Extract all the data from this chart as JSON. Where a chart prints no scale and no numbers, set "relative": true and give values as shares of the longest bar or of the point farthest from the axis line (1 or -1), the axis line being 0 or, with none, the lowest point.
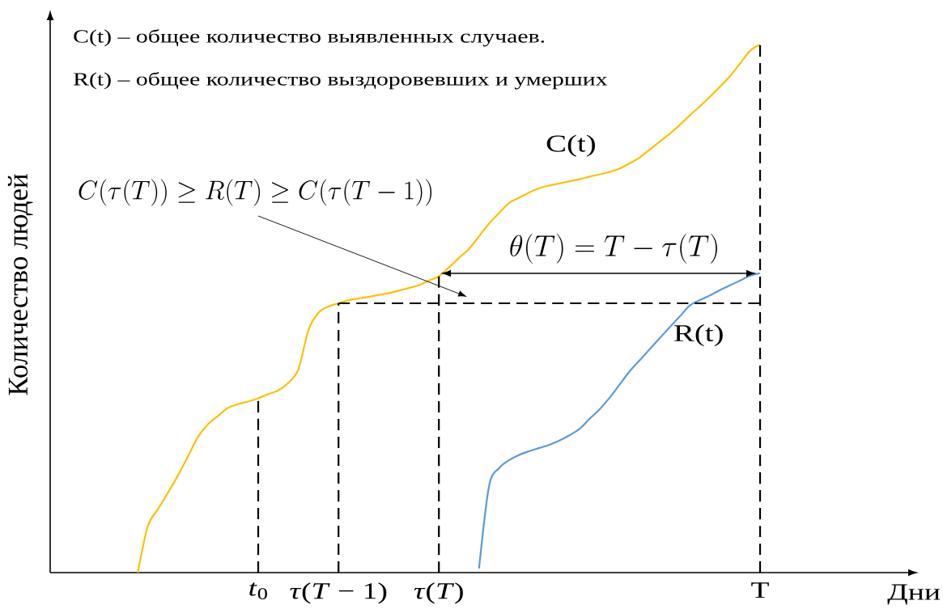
{
  "chart_data": {
    "type": "line",
    "relative": true,
    "ylabel": "Количество людей",
    "categories": [
      null,
      null,
      null,
      null,
      null,
      null,
      null,
      null,
      null,
      null,
      null,
      null,
      "*t*$_{0}$",
      null,
      null,
      null,
      null,
      null,
      null,
      null,
      "*τ*(*T* − 1)",
      null,
      null,
      null,
      null,
      null,
      null,
      null,
      null,
      null,
      "*τ*(*T*)",
      null,
      null,
      null,
      null,
      null,
      null,
      null,
      null,
      null,
      null,
      null,
      null,
      null,
      null,
      null,
      null,
      null,
      null,
      null,
      null,
      null,
      null,
      null,
      null,
      null,
      null,
      null,
      null,
      null,
      null,
      null,
      "T"
    ],
    "series": [
      {
        "name": "C(t)",
        "color": "#ffc000",
        "values": [
          0,
          0.088,
          0.12,
          0.151,
          0.184,
          0.22,
          0.257,
          0.281,
          0.297,
          0.312,
          0.319,
          0.324,
          0.33,
          0.338,
          0.345,
          0.359,
          0.385,
          0.459,
          0.492,
          0.504,
          0.51,
          0.516,
          0.519,
          0.522,
          0.526,
          0.529,
          0.534,
          0.539,
          0.544,
          0.553,
          0.561,
          0.578,
          0.596,
          0.613,
          0.637,
          0.661,
          0.681,
          0.7,
          0.71,
          0.72,
          0.728,
          0.733,
          0.737,
          0.741,
          0.745,
          0.75,
          0.754,
          0.759,
          0.765,
          0.775,
          0.786,
          0.801,
          0.816,
          0.831,
          0.848,
          0.866,
          0.883,
          0.901,
          0.92,
          0.94,
          0.964,
          0.988,
          1
        ]
      },
      {
        "name": "R(t)",
        "color": "#5b9bd5",
        "values": [
          null,
          null,
          null,
          null,
          null,
          null,
          null,
          null,
          null,
          null,
          null,
          null,
          null,
          null,
          null,
          null,
          null,
          null,
          null,
          null,
          null,
          null,
          null,
          null,
          null,
          null,
          null,
          null,
          null,
          null,
          null,
          null,
          null,
          null,
          0.008,
          0.164,
          0.198,
          0.213,
          0.223,
          0.23,
          0.236,
          0.242,
          0.25,
          0.26,
          0.272,
          0.291,
          0.309,
          0.331,
          0.356,
          0.381,
          0.402,
          0.423,
          0.444,
          0.465,
          0.485,
          0.506,
          0.516,
          0.525,
          0.535,
          0.544,
          0.553,
          0.562,
          0.567
        ]
      },
      {
        "type": "line",
        "color": "#000000",
        "line_style": "dashed",
        "x": [
          "*t*$_{0}$",
          "*t*$_{0}$"
        ],
        "values": [
          0,
          0.33
        ]
      },
      {
        "type": "line",
        "color": "#000000",
        "line_style": "dashed",
        "x": [
          "*τ*(*T* − 1)",
          "*τ*(*T* − 1)"
        ],
        "values": [
          0,
          0.51
        ]
      },
      {
        "type": "line",
        "color": "#000000",
        "line_style": "dashed",
        "x": [
          "*τ*(*T*)",
          "*τ*(*T*)"
        ],
        "values": [
          0,
          0.561
        ]
      },
      {
        "type": "line",
        "color": "#000000",
        "line_style": "dashed",
        "x": [
          "T",
          "T"
        ],
        "values": [
          0,
          1
        ]
      },
      {
        "type": "line",
        "color": "#000000",
        "line_style": "dashed",
        "x": [
          "*τ*(*T* − 1)",
          "T"
        ],
        "values": [
          0.51,
          0.51
        ]
      }
    ],
    "annotations": [
      "C(t) – общее количество выявленных случаев.",
      "R(t) – общее количество выздоровевших и умерших",
      "C\\bigl(\\tau(T)\\bigr) \\geq R(T) \\geq C(\\tau(T-1))",
      "\\theta(T) = T - \\tau(T)",
      "Дни"
    ]
  }
}
